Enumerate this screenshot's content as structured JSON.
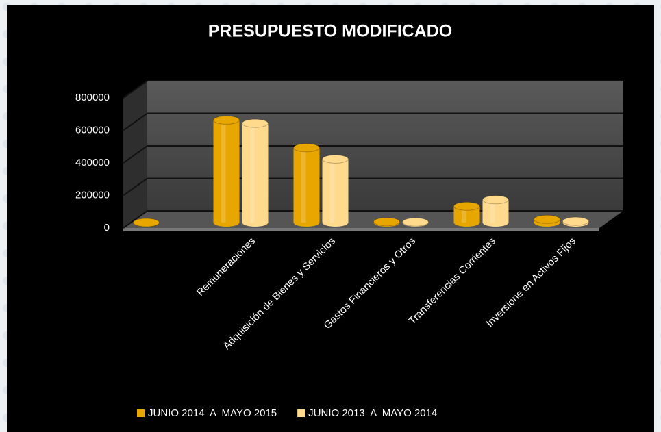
{
  "chart_data": {
    "type": "bar",
    "title": "PRESUPUESTO MODIFICADO",
    "categories": [
      null,
      "Remuneraciones",
      "Adquisición de Bienes y Servicios",
      "Gastos Financieros y Otros",
      "Transferencias Corrientes",
      "Inversione en Activos Fijos"
    ],
    "series": [
      {
        "name": "JUNIO 2014  A  MAYO 2015",
        "color": "#e8a600",
        "values": [
          0,
          630000,
          460000,
          5000,
          100000,
          20000
        ]
      },
      {
        "name": "JUNIO 2013  A  MAYO 2014",
        "color": "#ffd98c",
        "values": [
          null,
          610000,
          390000,
          3000,
          140000,
          8000
        ]
      }
    ],
    "ylim": [
      0,
      800000
    ],
    "yticks": [
      0,
      200000,
      400000,
      600000,
      800000
    ],
    "grid": true,
    "legend": "bottom"
  }
}
